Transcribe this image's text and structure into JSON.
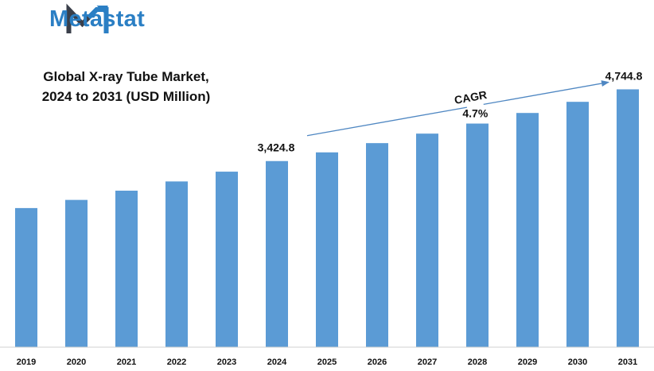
{
  "header": {
    "brand_name": "Metastat",
    "logo_icon": "metastat-m-logo-icon",
    "brand_color": "#2b7fc4",
    "logo_dark_color": "#3a3f4a"
  },
  "chart_data": {
    "type": "bar",
    "title_lines": [
      "Global X-ray Tube Market,",
      "2024 to 2031 (USD Million)"
    ],
    "categories": [
      "2019",
      "2020",
      "2021",
      "2022",
      "2023",
      "2024",
      "2025",
      "2026",
      "2027",
      "2028",
      "2029",
      "2030",
      "2031"
    ],
    "series": [
      {
        "values": [
          2560,
          2710,
          2880,
          3050,
          3230,
          3424.8,
          3585,
          3755,
          3930,
          4115,
          4310,
          4515,
          4744.8
        ],
        "color": "#5b9bd5"
      }
    ],
    "data_labels": [
      {
        "category": "2024",
        "text": "3,424.8"
      },
      {
        "category": "2031",
        "text": "4,744.8"
      }
    ],
    "annotation": {
      "label": "CAGR",
      "value": "4.7%",
      "from": "2024",
      "to": "2031",
      "arrow_color": "#4f87c2"
    },
    "xlabel": "",
    "ylabel": "",
    "ylim": [
      0,
      5000
    ],
    "grid": false,
    "legend": "none"
  }
}
